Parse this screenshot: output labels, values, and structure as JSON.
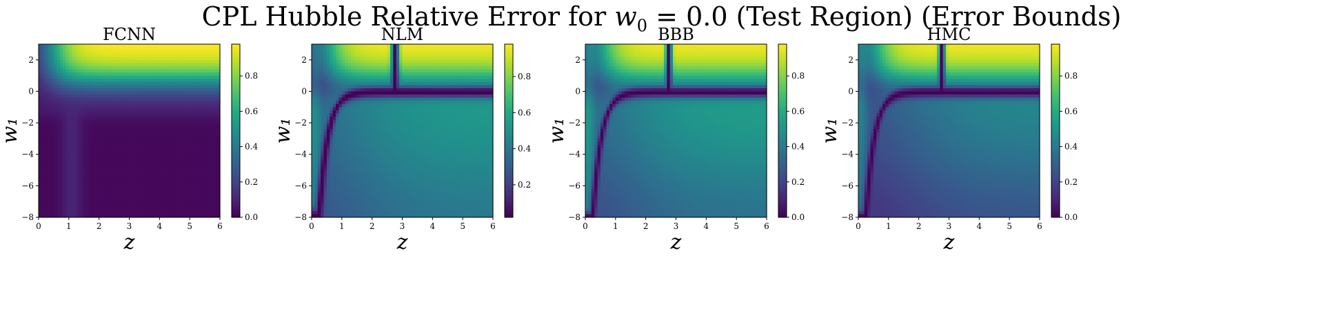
{
  "figure": {
    "suptitle": "CPL Hubble Relative Error for w₀ = 0.0 (Test Region) (Error Bounds)"
  },
  "chart_data": [
    {
      "type": "heatmap",
      "title": "FCNN",
      "xlabel": "z",
      "ylabel": "w₁",
      "xlim": [
        0,
        6
      ],
      "ylim": [
        -8,
        3
      ],
      "xticks": [
        0,
        1,
        2,
        3,
        4,
        5,
        6
      ],
      "yticks": [
        -8,
        -6,
        -4,
        -2,
        0,
        2
      ],
      "colorbar": {
        "range": [
          0.0,
          0.98
        ],
        "ticks": [
          0.0,
          0.2,
          0.4,
          0.6,
          0.8
        ],
        "tick_labels": [
          "0.0",
          "0.2",
          "0.4",
          "0.6",
          "0.8"
        ],
        "colormap": "viridis"
      },
      "grid": false,
      "feature_description": "High error (~0.95) at top-right for w1 > 0; near-zero elsewhere with a faint ridge near z≈1."
    },
    {
      "type": "heatmap",
      "title": "NLM",
      "xlabel": "z",
      "ylabel": "w₁",
      "xlim": [
        0,
        6
      ],
      "ylim": [
        -8,
        3
      ],
      "xticks": [
        0,
        1,
        2,
        3,
        4,
        5,
        6
      ],
      "yticks": [
        -8,
        -6,
        -4,
        -2,
        0,
        2
      ],
      "colorbar": {
        "range": [
          0.02,
          0.98
        ],
        "ticks": [
          0.2,
          0.4,
          0.6,
          0.8
        ],
        "tick_labels": [
          "0.2",
          "0.4",
          "0.6",
          "0.8"
        ],
        "colormap": "viridis"
      },
      "grid": false,
      "feature_description": "High error top-right; dark zero-error curve along w1≈0 bending down near z≈0.5; moderate (~0.5-0.6) error below."
    },
    {
      "type": "heatmap",
      "title": "BBB",
      "xlabel": "z",
      "ylabel": "w₁",
      "xlim": [
        0,
        6
      ],
      "ylim": [
        -8,
        3
      ],
      "xticks": [
        0,
        1,
        2,
        3,
        4,
        5,
        6
      ],
      "yticks": [
        -8,
        -6,
        -4,
        -2,
        0,
        2
      ],
      "colorbar": {
        "range": [
          0.0,
          0.98
        ],
        "ticks": [
          0.0,
          0.2,
          0.4,
          0.6,
          0.8
        ],
        "tick_labels": [
          "0.0",
          "0.2",
          "0.4",
          "0.6",
          "0.8"
        ],
        "colormap": "viridis"
      },
      "grid": false,
      "feature_description": "Similar to NLM: dark zero-error curve from (0.3,-8) rising to w1≈0 across z; moderate error below."
    },
    {
      "type": "heatmap",
      "title": "HMC",
      "xlabel": "z",
      "ylabel": "w₁",
      "xlim": [
        0,
        6
      ],
      "ylim": [
        -8,
        3
      ],
      "xticks": [
        0,
        1,
        2,
        3,
        4,
        5,
        6
      ],
      "yticks": [
        -8,
        -6,
        -4,
        -2,
        0,
        2
      ],
      "colorbar": {
        "range": [
          0.0,
          0.98
        ],
        "ticks": [
          0.0,
          0.2,
          0.4,
          0.6,
          0.8
        ],
        "tick_labels": [
          "0.0",
          "0.2",
          "0.4",
          "0.6",
          "0.8"
        ],
        "colormap": "viridis"
      },
      "grid": false,
      "feature_description": "Similar to BBB with slightly lower mid-region error."
    }
  ]
}
